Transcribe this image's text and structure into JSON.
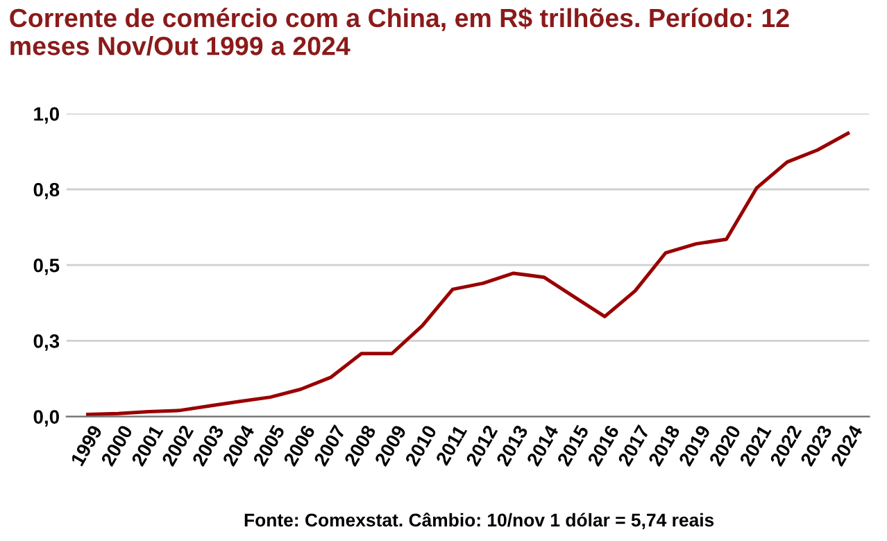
{
  "chart_data": {
    "type": "line",
    "title": "Corrente de comércio com a China, em R$ trilhões. Período: 12 meses Nov/Out 1999 a 2024",
    "categories": [
      "1999",
      "2000",
      "2001",
      "2002",
      "2003",
      "2004",
      "2005",
      "2006",
      "2007",
      "2008",
      "2009",
      "2010",
      "2011",
      "2012",
      "2013",
      "2014",
      "2015",
      "2016",
      "2017",
      "2018",
      "2019",
      "2020",
      "2021",
      "2022",
      "2023",
      "2024"
    ],
    "series": [
      {
        "color": "#990000",
        "values": [
          0.007,
          0.01,
          0.016,
          0.02,
          0.035,
          0.05,
          0.064,
          0.09,
          0.13,
          0.208,
          0.208,
          0.3,
          0.42,
          0.44,
          0.473,
          0.46,
          0.395,
          0.33,
          0.415,
          0.54,
          0.57,
          0.585,
          0.755,
          0.84,
          0.88,
          0.935
        ]
      }
    ],
    "ylim": [
      0,
      1.0
    ],
    "yticks": [
      {
        "value": 0,
        "label": "0,0"
      },
      {
        "value": 0.25,
        "label": "0,3"
      },
      {
        "value": 0.5,
        "label": "0,5"
      },
      {
        "value": 0.75,
        "label": "0,8"
      },
      {
        "value": 1.0,
        "label": "1,0"
      }
    ],
    "grid": "y",
    "marker": "none",
    "line_style": "solid",
    "annotations": [
      "Fonte: Comexstat. Câmbio: 10/nov 1 dólar = 5,74 reais"
    ]
  }
}
